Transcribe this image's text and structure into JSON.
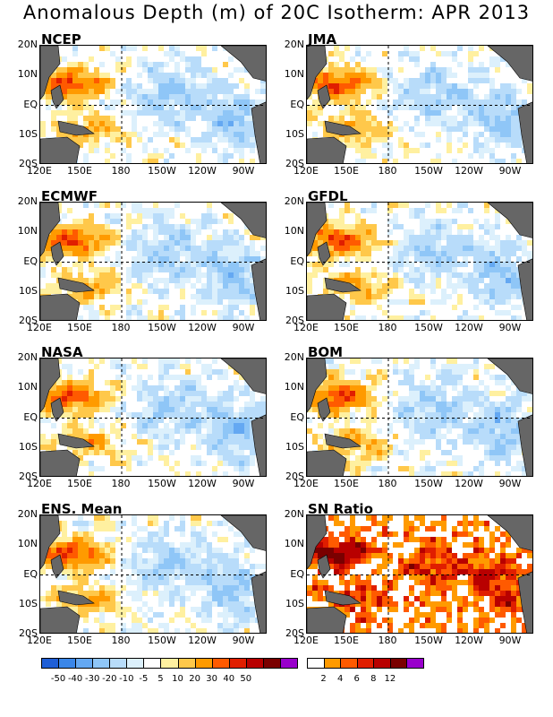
{
  "title": "Anomalous Depth (m) of 20C Isotherm: APR 2013",
  "lat_labels": [
    "20N",
    "10N",
    "EQ",
    "10S",
    "20S"
  ],
  "lon_labels": [
    "120E",
    "150E",
    "180",
    "150W",
    "120W",
    "90W"
  ],
  "panels": [
    {
      "label": "NCEP"
    },
    {
      "label": "JMA"
    },
    {
      "label": "ECMWF"
    },
    {
      "label": "GFDL"
    },
    {
      "label": "NASA"
    },
    {
      "label": "BOM"
    },
    {
      "label": "ENS. Mean"
    },
    {
      "label": "SN Ratio"
    }
  ],
  "colorbar_left": {
    "colors": [
      "#1f5fd6",
      "#3a86e8",
      "#64a8f2",
      "#8fc6f7",
      "#b8dcfa",
      "#dcf0fc",
      "#ffffff",
      "#fff0a0",
      "#ffc84a",
      "#ff9a00",
      "#ff5a00",
      "#e01e00",
      "#b80000",
      "#7a0000",
      "#9900cc"
    ],
    "ticks": [
      "-50",
      "-40",
      "-30",
      "-20",
      "-10",
      "-5",
      "5",
      "10",
      "20",
      "30",
      "40",
      "50"
    ]
  },
  "colorbar_right": {
    "colors": [
      "#ffffff",
      "#ff9a00",
      "#ff5a00",
      "#e01e00",
      "#b80000",
      "#7a0000",
      "#9900cc"
    ],
    "ticks": [
      "2",
      "4",
      "6",
      "8",
      "12"
    ]
  },
  "land_color": "#666666"
}
